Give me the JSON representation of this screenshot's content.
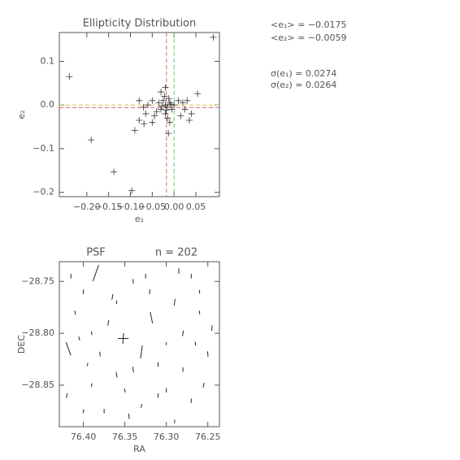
{
  "chart_data": [
    {
      "type": "scatter",
      "title": "Ellipticity Distribution",
      "x_label": "e₁",
      "y_label": "e₂",
      "xlim": [
        -0.263,
        0.104
      ],
      "ylim": [
        -0.21,
        0.166
      ],
      "xticks": [
        {
          "value": -0.2,
          "label": "−0.20"
        },
        {
          "value": -0.15,
          "label": "−0.15"
        },
        {
          "value": -0.1,
          "label": "−0.10"
        },
        {
          "value": -0.05,
          "label": "−0.05"
        },
        {
          "value": 0,
          "label": "0.00"
        },
        0.05
      ],
      "yticks": [
        {
          "value": -0.2,
          "label": "−0.2"
        },
        {
          "value": -0.1,
          "label": "−0.1"
        },
        {
          "value": 0,
          "label": "0.0"
        },
        0.1
      ],
      "color": "#333333",
      "x": [
        -0.02,
        -0.015,
        -0.01,
        -0.025,
        -0.03,
        -0.005,
        -0.02,
        -0.012,
        -0.035,
        0.0,
        -0.018,
        -0.008,
        -0.028,
        -0.022,
        -0.04,
        0.01,
        0.02,
        -0.05,
        -0.045,
        -0.06,
        0.025,
        -0.015,
        -0.03,
        -0.07,
        0.03,
        -0.01,
        -0.065,
        0.04,
        -0.02,
        0.035,
        -0.05,
        -0.08,
        0.015,
        0.09,
        -0.24,
        -0.19,
        -0.138,
        -0.097,
        -0.09,
        -0.069,
        0.054,
        -0.013,
        -0.08
      ],
      "y": [
        0.0,
        -0.005,
        0.005,
        0.01,
        -0.01,
        -0.01,
        -0.02,
        0.015,
        0.005,
        0.0,
        -0.012,
        0.002,
        -0.003,
        0.02,
        -0.015,
        0.01,
        0.005,
        0.01,
        -0.025,
        0.0,
        -0.01,
        -0.03,
        0.03,
        -0.005,
        0.01,
        -0.04,
        -0.02,
        -0.02,
        0.04,
        -0.035,
        -0.04,
        0.01,
        -0.025,
        0.155,
        0.065,
        -0.08,
        -0.153,
        -0.196,
        -0.058,
        -0.043,
        0.026,
        -0.065,
        -0.035
      ],
      "ref_lines": [
        {
          "axis": "x",
          "value": -0.0175,
          "color": "#e0607a"
        },
        {
          "axis": "x",
          "value": 0,
          "color": "#66cc66"
        },
        {
          "axis": "y",
          "value": -0.0059,
          "color": "#e0607a"
        },
        {
          "axis": "y",
          "value": 0,
          "color": "#cccc55"
        }
      ],
      "annotations": [
        "<e₁> = −0.0175",
        "<e₂> = −0.0059",
        "σ(e₁) = 0.0274",
        "σ(e₂) = 0.0264"
      ]
    },
    {
      "type": "whisker",
      "title": "PSF",
      "subtitle": "n = 202",
      "x_label": "RA",
      "y_label": "DEC",
      "xlim": [
        76.429,
        76.236
      ],
      "ylim": [
        -28.89,
        -28.731
      ],
      "xticks": [
        {
          "value": 76.4,
          "label": "76.40"
        },
        76.35,
        {
          "value": 76.3,
          "label": "76.30"
        },
        76.25
      ],
      "yticks": [
        {
          "value": -28.75,
          "label": "−28.75"
        },
        {
          "value": -28.8,
          "label": "−28.80"
        },
        {
          "value": -28.85,
          "label": "−28.85"
        }
      ],
      "color": "#222222",
      "ra": [
        76.385,
        76.418,
        76.352,
        76.352,
        76.318,
        76.33,
        76.4,
        76.41,
        76.37,
        76.34,
        76.29,
        76.27,
        76.26,
        76.28,
        76.31,
        76.36,
        76.39,
        76.42,
        76.25,
        76.3,
        76.33,
        76.345,
        76.375,
        76.395,
        76.405,
        76.32,
        76.285,
        76.265,
        76.255,
        76.36,
        76.34,
        76.31,
        76.29,
        76.38,
        76.4,
        76.27,
        76.245,
        76.35,
        76.325,
        76.3,
        76.415,
        76.39,
        76.365,
        76.28,
        76.26
      ],
      "dec": [
        -28.742,
        -28.815,
        -28.805,
        -28.805,
        -28.785,
        -28.818,
        -28.76,
        -28.78,
        -28.79,
        -28.75,
        -28.77,
        -28.745,
        -28.78,
        -28.8,
        -28.83,
        -28.84,
        -28.85,
        -28.86,
        -28.82,
        -28.855,
        -28.87,
        -28.88,
        -28.875,
        -28.83,
        -28.805,
        -28.76,
        -28.74,
        -28.81,
        -28.85,
        -28.77,
        -28.835,
        -28.86,
        -28.885,
        -28.82,
        -28.875,
        -28.865,
        -28.795,
        -28.855,
        -28.745,
        -28.81,
        -28.745,
        -28.8,
        -28.765,
        -28.835,
        -28.76
      ],
      "e1": [
        -0.15,
        -0.12,
        0.12,
        -0.12,
        -0.12,
        -0.14,
        -0.05,
        -0.04,
        -0.06,
        -0.05,
        -0.07,
        -0.05,
        -0.04,
        -0.06,
        -0.05,
        -0.06,
        -0.04,
        -0.05,
        -0.06,
        -0.05,
        -0.04,
        -0.06,
        -0.05,
        -0.03,
        -0.04,
        -0.05,
        -0.06,
        -0.04,
        -0.05,
        -0.04,
        -0.06,
        -0.05,
        -0.04,
        -0.05,
        -0.04,
        -0.05,
        -0.06,
        -0.04,
        -0.05,
        -0.03,
        -0.05,
        -0.04,
        -0.06,
        -0.05,
        -0.04
      ],
      "e2": [
        0.12,
        -0.1,
        0.0,
        0.02,
        -0.05,
        0.04,
        0.01,
        -0.02,
        0.02,
        -0.01,
        0.02,
        0.0,
        -0.01,
        0.02,
        0.0,
        -0.02,
        0.01,
        0.02,
        -0.01,
        0.0,
        0.02,
        -0.01,
        0.0,
        0.02,
        -0.02,
        0.01,
        0.0,
        -0.01,
        0.02,
        0.0,
        -0.02,
        0.01,
        0.0,
        -0.01,
        0.02,
        0.0,
        0.01,
        -0.02,
        0.0,
        0.01,
        0.0,
        -0.01,
        0.02,
        0.0,
        -0.01
      ]
    }
  ]
}
